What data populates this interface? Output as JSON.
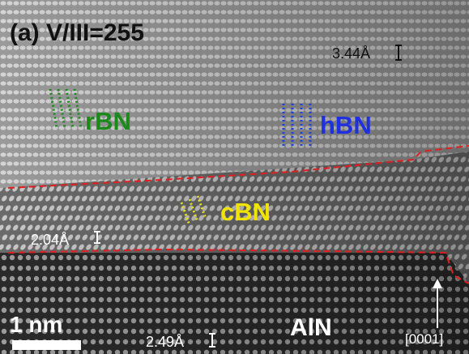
{
  "figure": {
    "panel_title": "(a) V/III=255",
    "labels": {
      "rbn": "rBN",
      "hbn": "hBN",
      "cbn": "cBN",
      "aln": "AlN"
    },
    "spacings": {
      "top": "3.44Å",
      "middle": "2.04Å",
      "bottom": "2.49Å"
    },
    "scale_bar": "1 nm",
    "direction": "[0001]"
  }
}
